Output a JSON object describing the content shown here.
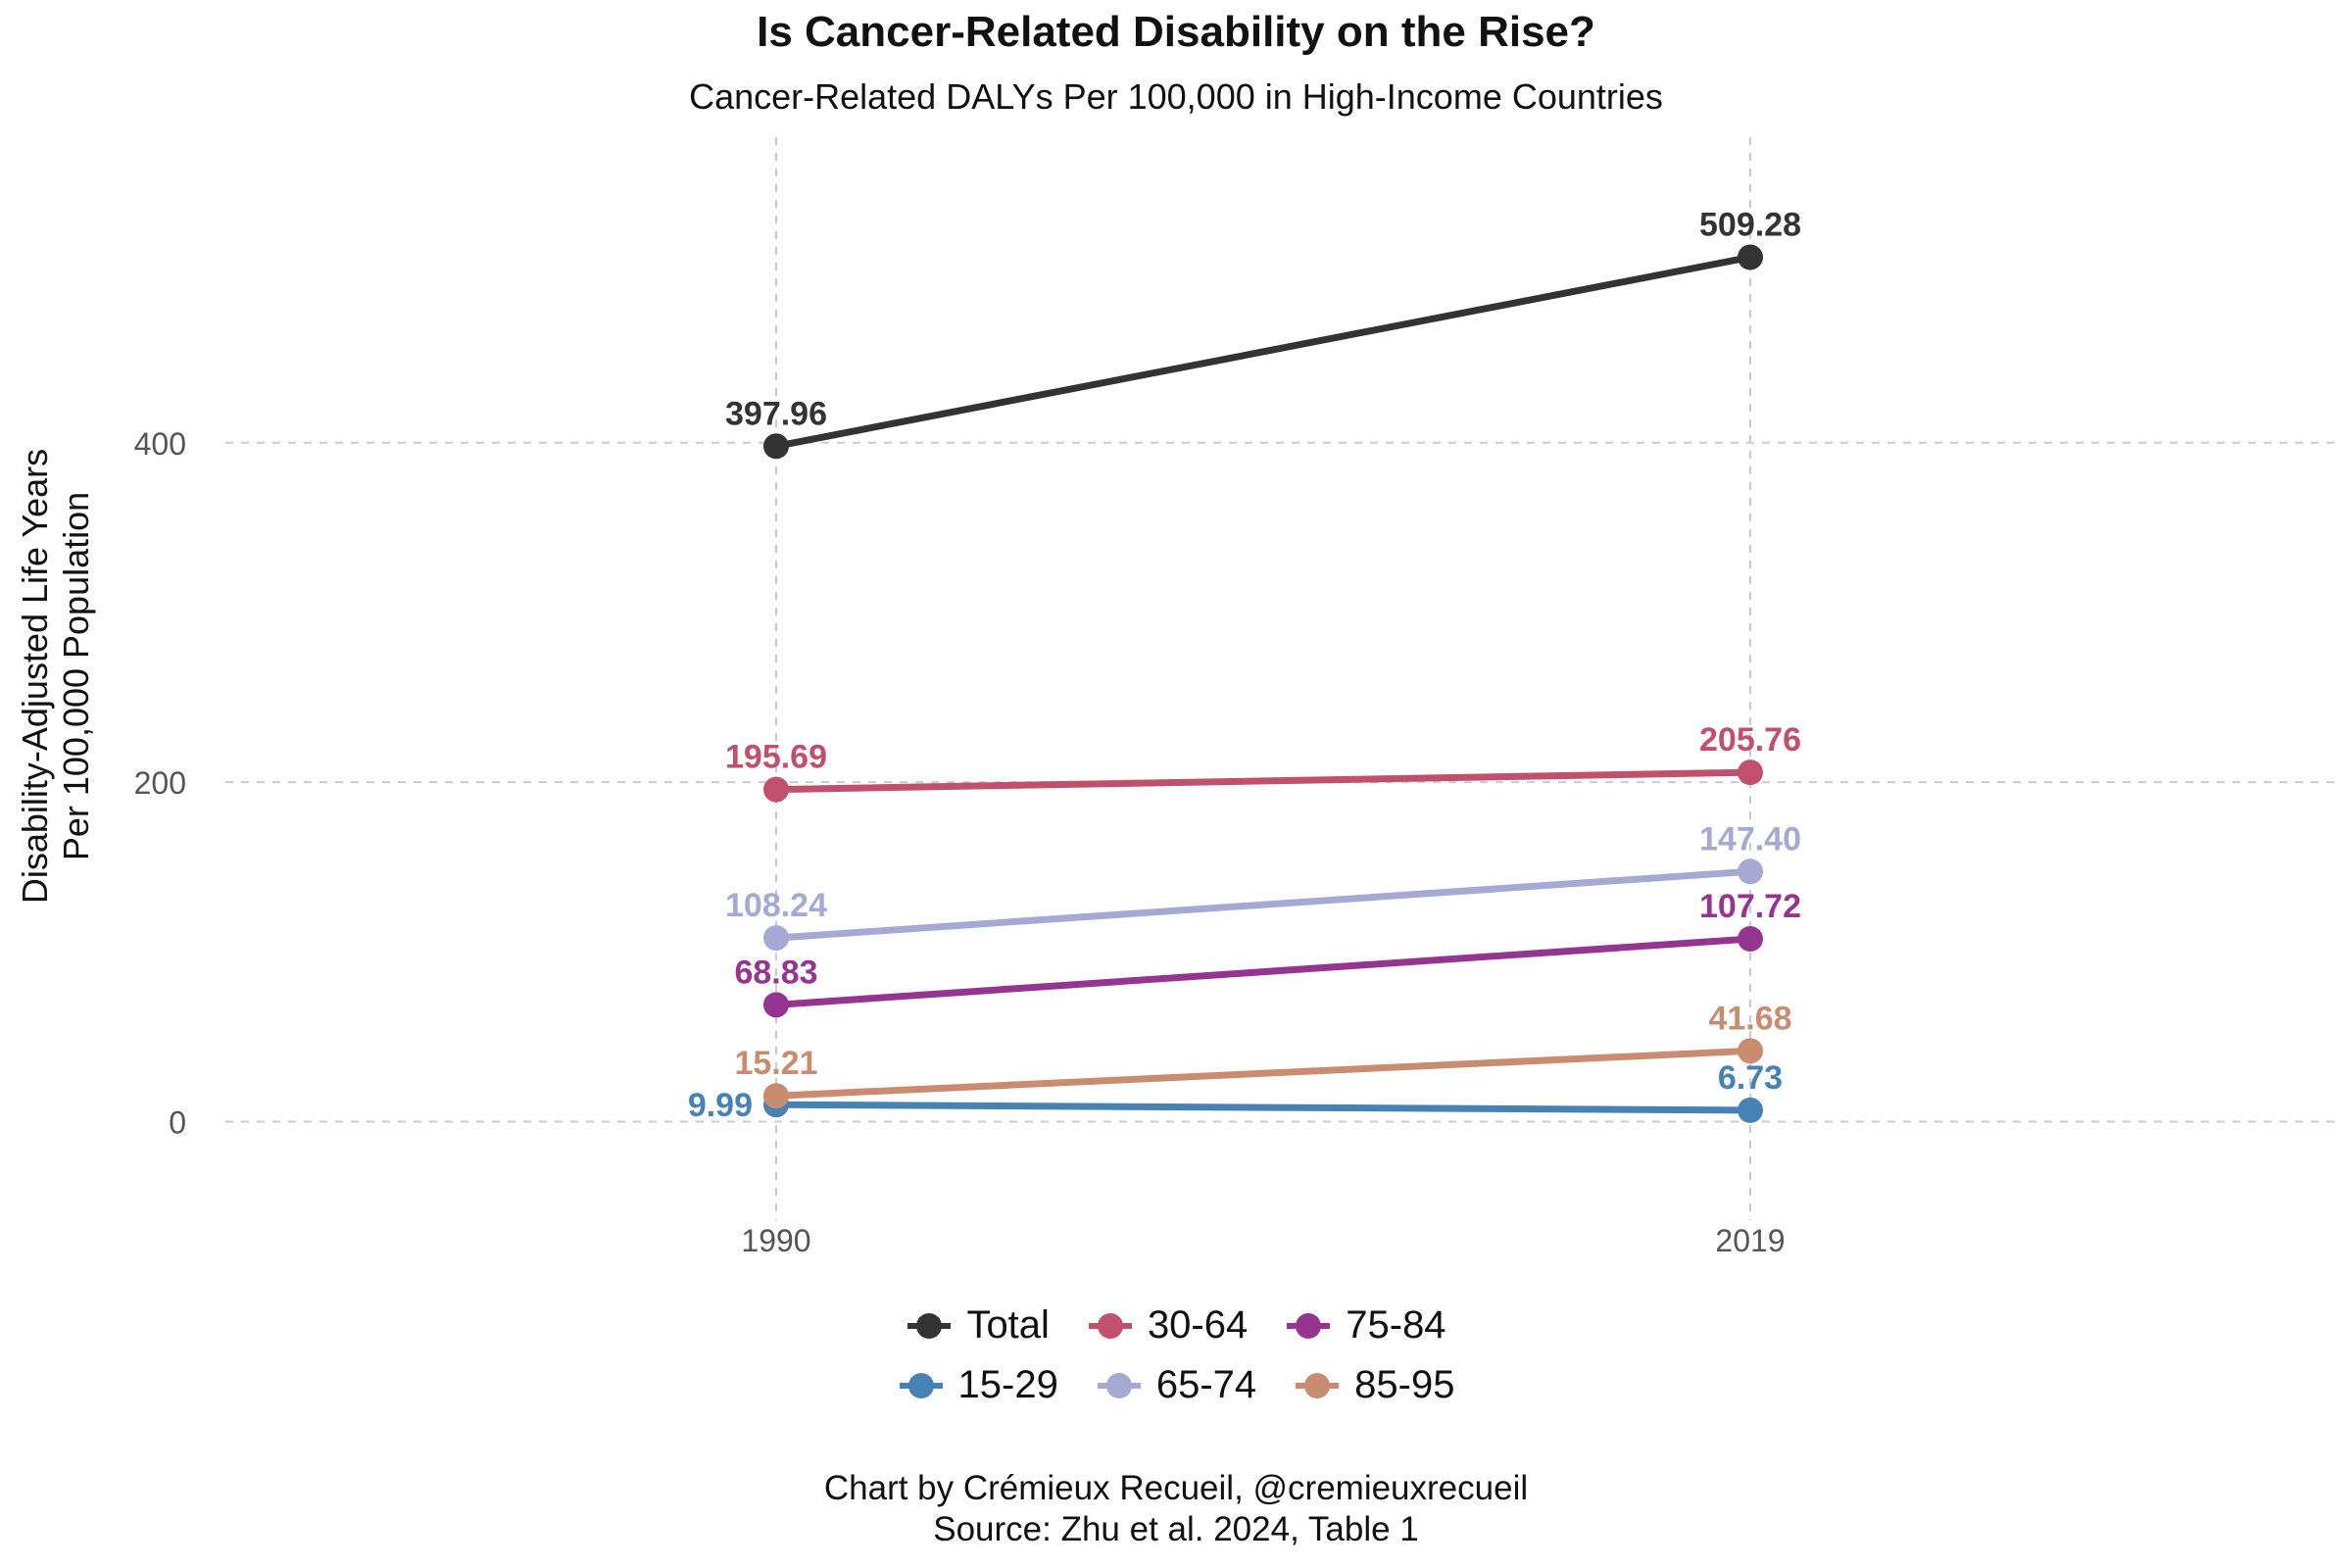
{
  "title": "Is Cancer-Related Disability on the Rise?",
  "subtitle": "Cancer-Related DALYs Per 100,000 in High-Income Countries",
  "caption_line1": "Chart by Crémieux Recueil, @cremieuxrecueil",
  "caption_line2": "Source: Zhu et al. 2024, Table 1",
  "chart_data": {
    "type": "line",
    "title": "Is Cancer-Related Disability on the Rise?",
    "subtitle": "Cancer-Related DALYs Per 100,000 in High-Income Countries",
    "xlabel": "",
    "ylabel_lines": [
      "Disability-Adjusted Life Years",
      "Per 100,000 Population"
    ],
    "x": [
      "1990",
      "2019"
    ],
    "ylim": [
      -58,
      580
    ],
    "yticks": [
      0,
      200,
      400
    ],
    "grid": true,
    "legend_position": "bottom",
    "series": [
      {
        "name": "Total",
        "color": "#333333",
        "values": [
          397.96,
          509.28
        ],
        "labels": [
          "397.96",
          "509.28"
        ]
      },
      {
        "name": "15-29",
        "color": "#4682b4",
        "values": [
          9.99,
          6.73
        ],
        "labels": [
          "9.99",
          "6.73"
        ]
      },
      {
        "name": "30-64",
        "color": "#c0506b",
        "values": [
          195.69,
          205.76
        ],
        "labels": [
          "195.69",
          "205.76"
        ]
      },
      {
        "name": "65-74",
        "color": "#a6a9d4",
        "values": [
          108.24,
          147.4
        ],
        "labels": [
          "108.24",
          "147.40"
        ]
      },
      {
        "name": "75-84",
        "color": "#94358f",
        "values": [
          68.83,
          107.72
        ],
        "labels": [
          "68.83",
          "107.72"
        ]
      },
      {
        "name": "85-95",
        "color": "#c98c70",
        "values": [
          15.21,
          41.68
        ],
        "labels": [
          "15.21",
          "41.68"
        ]
      }
    ],
    "legend_rows": [
      [
        "Total",
        "30-64",
        "75-84"
      ],
      [
        "15-29",
        "65-74",
        "85-95"
      ]
    ]
  }
}
